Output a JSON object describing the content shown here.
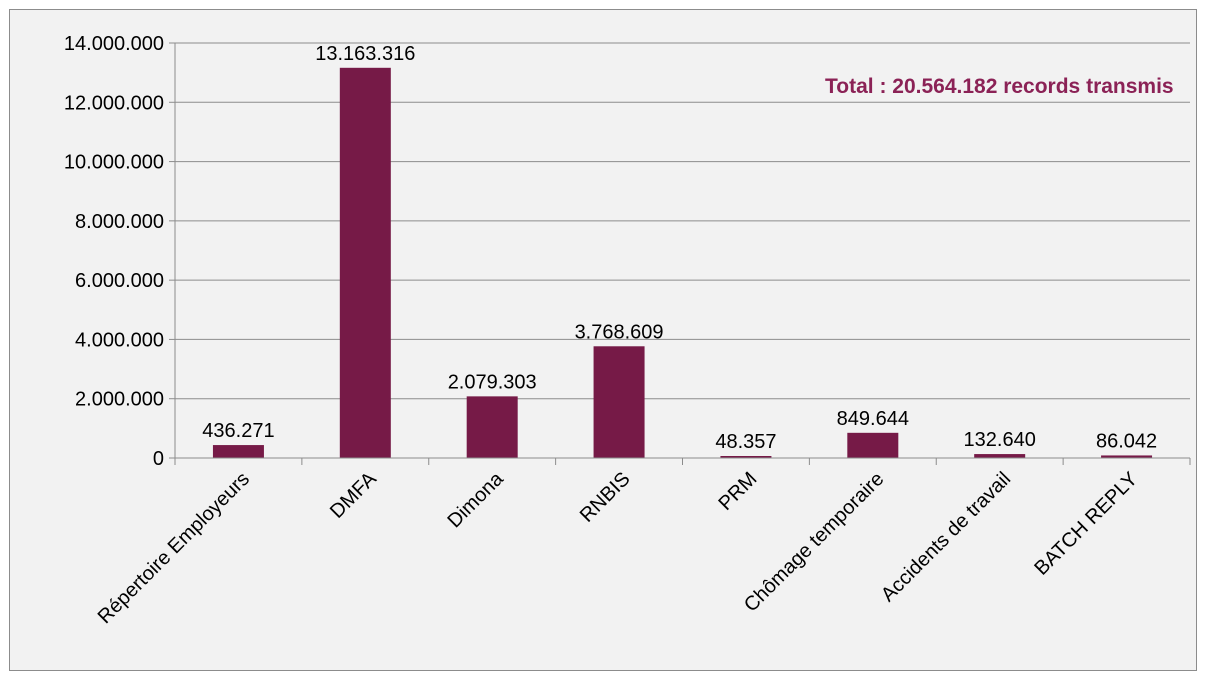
{
  "chart_data": {
    "type": "bar",
    "categories": [
      "Répertoire Employeurs",
      "DMFA",
      "Dimona",
      "RNBIS",
      "PRM",
      "Chômage temporaire",
      "Accidents de travail",
      "BATCH REPLY"
    ],
    "values": [
      436271,
      13163316,
      2079303,
      3768609,
      48357,
      849644,
      132640,
      86042
    ],
    "data_labels": [
      "436.271",
      "13.163.316",
      "2.079.303",
      "3.768.609",
      "48.357",
      "849.644",
      "132.640",
      "86.042"
    ],
    "y_ticks": [
      0,
      2000000,
      4000000,
      6000000,
      8000000,
      10000000,
      12000000,
      14000000
    ],
    "y_tick_labels": [
      "0",
      "2.000.000",
      "4.000.000",
      "6.000.000",
      "8.000.000",
      "10.000.000",
      "12.000.000",
      "14.000.000"
    ],
    "ylim": [
      0,
      14000000
    ],
    "title": "",
    "xlabel": "",
    "ylabel": "",
    "grid": true,
    "legend": "none",
    "annotation": "Total : 20.564.182 records transmis",
    "bar_color": "#761a47",
    "annotation_color": "#8b2256"
  }
}
